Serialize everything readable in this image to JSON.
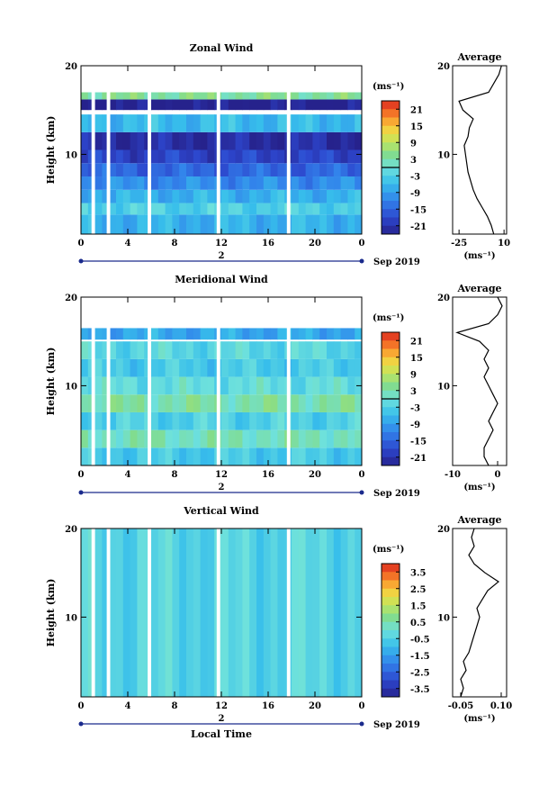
{
  "chart_data": [
    {
      "type": "heatmap",
      "title": "Zonal Wind",
      "xlabel": "",
      "ylabel": "Height (km)",
      "x_ticks": [
        "0",
        "4",
        "8",
        "12",
        "16",
        "20",
        "0"
      ],
      "y_ticks": [
        "10",
        "20"
      ],
      "xlim": [
        0,
        24
      ],
      "ylim": [
        1,
        20
      ],
      "date_day": "2",
      "date_label": "Sep 2019",
      "colorbar": {
        "unit": "(ms⁻¹)",
        "ticks": [
          "21",
          "15",
          "9",
          "3",
          "-3",
          "-9",
          "-15",
          "-21"
        ],
        "range": [
          -24,
          24
        ],
        "zero_line": 0
      },
      "layers": [
        {
          "h0": 1,
          "h1": 3.2,
          "v": -7
        },
        {
          "h0": 3.2,
          "h1": 4.5,
          "v": -3
        },
        {
          "h0": 4.5,
          "h1": 6,
          "v": -7
        },
        {
          "h0": 6,
          "h1": 7.5,
          "v": -11
        },
        {
          "h0": 7.5,
          "h1": 9,
          "v": -15
        },
        {
          "h0": 9,
          "h1": 10.5,
          "v": -19
        },
        {
          "h0": 10.5,
          "h1": 12.5,
          "v": -22
        },
        {
          "h0": 12.5,
          "h1": 14.5,
          "v": -6
        },
        {
          "h0": 15,
          "h1": 16.2,
          "v": -24
        },
        {
          "h0": 16.2,
          "h1": 17,
          "v": 4
        }
      ],
      "gaps": [
        {
          "x0": 0.9,
          "x1": 1.2
        },
        {
          "x0": 2.2,
          "x1": 2.5
        },
        {
          "x0": 5.7,
          "x1": 6.0
        },
        {
          "x0": 11.6,
          "x1": 11.9
        },
        {
          "x0": 17.6,
          "x1": 17.9
        }
      ],
      "average": {
        "title": "Average",
        "xlabel": "(ms⁻¹)",
        "x_ticks": [
          "-25",
          "10"
        ],
        "y_ticks": [
          "10",
          "20"
        ],
        "xlim": [
          -30,
          12
        ],
        "ylim": [
          1,
          20
        ],
        "profile_h": [
          1,
          2,
          3,
          4,
          5,
          6,
          7,
          8,
          9,
          10,
          11,
          12,
          13,
          14,
          15,
          16,
          17,
          18,
          19,
          20
        ],
        "profile_v": [
          2,
          0,
          -3,
          -7,
          -11,
          -14,
          -16,
          -18,
          -19,
          -20,
          -21,
          -18,
          -17,
          -14,
          -22,
          -25,
          -2,
          2,
          6,
          8
        ]
      }
    },
    {
      "type": "heatmap",
      "title": "Meridional Wind",
      "xlabel": "",
      "ylabel": "Height (km)",
      "x_ticks": [
        "0",
        "4",
        "8",
        "12",
        "16",
        "20",
        "0"
      ],
      "y_ticks": [
        "10",
        "20"
      ],
      "xlim": [
        0,
        24
      ],
      "ylim": [
        1,
        20
      ],
      "date_day": "2",
      "date_label": "Sep 2019",
      "colorbar": {
        "unit": "(ms⁻¹)",
        "ticks": [
          "21",
          "15",
          "9",
          "3",
          "-3",
          "-9",
          "-15",
          "-21"
        ],
        "range": [
          -24,
          24
        ],
        "zero_line": 0
      },
      "layers": [
        {
          "h0": 1,
          "h1": 3,
          "v": -4
        },
        {
          "h0": 3,
          "h1": 5,
          "v": 2
        },
        {
          "h0": 5,
          "h1": 7,
          "v": -3
        },
        {
          "h0": 7,
          "h1": 9,
          "v": 3
        },
        {
          "h0": 9,
          "h1": 11,
          "v": -1
        },
        {
          "h0": 11,
          "h1": 13,
          "v": -4
        },
        {
          "h0": 13,
          "h1": 15,
          "v": -2
        },
        {
          "h0": 15.2,
          "h1": 16.5,
          "v": -8
        }
      ],
      "gaps": [
        {
          "x0": 0.9,
          "x1": 1.2
        },
        {
          "x0": 2.2,
          "x1": 2.5
        },
        {
          "x0": 5.7,
          "x1": 6.0
        },
        {
          "x0": 11.6,
          "x1": 11.9
        },
        {
          "x0": 17.6,
          "x1": 17.9
        }
      ],
      "average": {
        "title": "Average",
        "xlabel": "(ms⁻¹)",
        "x_ticks": [
          "-10",
          "0"
        ],
        "y_ticks": [
          "10",
          "20"
        ],
        "xlim": [
          -10,
          2
        ],
        "ylim": [
          1,
          20
        ],
        "profile_h": [
          1,
          2,
          3,
          4,
          5,
          6,
          7,
          8,
          9,
          10,
          11,
          12,
          13,
          14,
          15,
          16,
          17,
          18,
          19,
          20
        ],
        "profile_v": [
          -2,
          -3,
          -3,
          -2,
          -1,
          -2,
          -1,
          0,
          -1,
          -2,
          -3,
          -2,
          -3,
          -2,
          -4,
          -9,
          -2,
          0,
          1,
          0
        ]
      }
    },
    {
      "type": "heatmap",
      "title": "Vertical Wind",
      "xlabel": "Local Time",
      "ylabel": "Height (km)",
      "x_ticks": [
        "0",
        "4",
        "8",
        "12",
        "16",
        "20",
        "0"
      ],
      "y_ticks": [
        "10",
        "20"
      ],
      "xlim": [
        0,
        24
      ],
      "ylim": [
        1,
        20
      ],
      "date_day": "2",
      "date_label": "Sep 2019",
      "colorbar": {
        "unit": "(ms⁻¹)",
        "ticks": [
          "3.5",
          "2.5",
          "1.5",
          "0.5",
          "-0.5",
          "-1.5",
          "-2.5",
          "-3.5"
        ],
        "range": [
          -4,
          4
        ],
        "zero_line": null
      },
      "layers": [
        {
          "h0": 1,
          "h1": 20,
          "v": -0.4
        }
      ],
      "gaps": [
        {
          "x0": 0.9,
          "x1": 1.2
        },
        {
          "x0": 2.2,
          "x1": 2.5
        },
        {
          "x0": 5.7,
          "x1": 6.0
        },
        {
          "x0": 11.6,
          "x1": 11.9
        },
        {
          "x0": 17.6,
          "x1": 17.9
        }
      ],
      "average": {
        "title": "Average",
        "xlabel": "(ms⁻¹)",
        "x_ticks": [
          "-0.05",
          "0.10"
        ],
        "y_ticks": [
          "10",
          "20"
        ],
        "xlim": [
          -0.08,
          0.12
        ],
        "ylim": [
          1,
          20
        ],
        "profile_h": [
          1,
          2,
          3,
          4,
          5,
          6,
          7,
          8,
          9,
          10,
          11,
          12,
          13,
          14,
          15,
          16,
          17,
          18,
          19,
          20
        ],
        "profile_v": [
          -0.05,
          -0.04,
          -0.05,
          -0.03,
          -0.04,
          -0.02,
          -0.01,
          0.0,
          0.01,
          0.02,
          0.01,
          0.03,
          0.05,
          0.09,
          0.04,
          0.0,
          -0.02,
          0.0,
          -0.01,
          0.0
        ]
      }
    }
  ]
}
